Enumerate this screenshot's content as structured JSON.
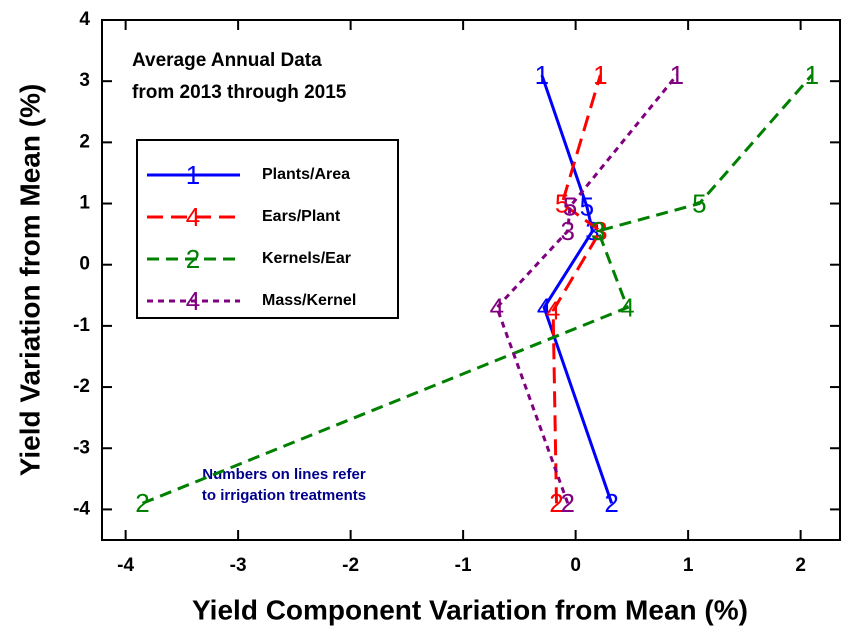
{
  "chart_data": {
    "type": "line",
    "xlabel": "Yield Component Variation from Mean (%)",
    "ylabel": "Yield Variation from Mean (%)",
    "annotations": [
      [
        "Average Annual Data",
        "from 2013 through 2015"
      ],
      [
        "Numbers on lines refer",
        "to irrigation treatments"
      ]
    ],
    "xlim": [
      -4.21,
      2.35
    ],
    "ylim": [
      -4.5,
      4
    ],
    "xticks": [
      -4,
      -3,
      -2,
      -1,
      0,
      1,
      2
    ],
    "yticks": [
      -4,
      -3,
      -2,
      -1,
      0,
      1,
      2,
      3,
      4
    ],
    "series": [
      {
        "name": "Plants/Area",
        "color": "#0000ff",
        "dash": "none",
        "legend_marker": "1",
        "point_labels": [
          "2",
          "4",
          "3",
          "5",
          "1"
        ],
        "x": [
          0.32,
          -0.28,
          0.15,
          0.1,
          -0.3
        ],
        "values": [
          -3.9,
          -0.7,
          0.55,
          0.95,
          3.1
        ]
      },
      {
        "name": "Ears/Plant",
        "color": "#ff0000",
        "dash": "16 8",
        "legend_marker": "4",
        "point_labels": [
          "2",
          "4",
          "3",
          "5",
          "1"
        ],
        "x": [
          -0.17,
          -0.2,
          0.22,
          -0.12,
          0.22
        ],
        "values": [
          -3.9,
          -0.75,
          0.55,
          1.0,
          3.1
        ]
      },
      {
        "name": "Kernels/Ear",
        "color": "#008000",
        "dash": "12 7",
        "legend_marker": "2",
        "point_labels": [
          "2",
          "4",
          "3",
          "5",
          "1"
        ],
        "x": [
          -3.85,
          0.46,
          0.2,
          1.1,
          2.1
        ],
        "values": [
          -3.9,
          -0.7,
          0.55,
          1.0,
          3.1
        ]
      },
      {
        "name": "Mass/Kernel",
        "color": "#800080",
        "dash": "6 5",
        "legend_marker": "4",
        "point_labels": [
          "2",
          "4",
          "3",
          "5",
          "1"
        ],
        "x": [
          -0.07,
          -0.7,
          -0.07,
          -0.05,
          0.9
        ],
        "values": [
          -3.9,
          -0.7,
          0.55,
          0.95,
          3.1
        ]
      }
    ]
  }
}
